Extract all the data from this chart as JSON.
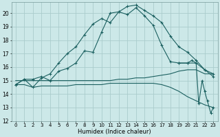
{
  "xlabel": "Humidex (Indice chaleur)",
  "bg_color": "#cce8e8",
  "grid_color": "#aacccc",
  "line_color": "#1a5f5f",
  "xlim": [
    -0.5,
    23.5
  ],
  "ylim": [
    12,
    20.8
  ],
  "yticks": [
    12,
    13,
    14,
    15,
    16,
    17,
    18,
    19,
    20
  ],
  "xticks": [
    0,
    1,
    2,
    3,
    4,
    5,
    6,
    7,
    8,
    9,
    10,
    11,
    12,
    13,
    14,
    15,
    16,
    17,
    18,
    19,
    20,
    21,
    22,
    23
  ],
  "curve1_x": [
    0,
    1,
    2,
    3,
    4,
    5,
    6,
    7,
    8,
    9,
    10,
    11,
    12,
    13,
    14,
    15,
    16,
    17,
    18,
    19,
    20,
    21,
    22,
    23
  ],
  "curve1_y": [
    14.7,
    15.1,
    14.5,
    15.2,
    15.5,
    16.3,
    17.0,
    17.5,
    18.4,
    19.2,
    19.6,
    19.3,
    20.1,
    20.5,
    20.6,
    20.2,
    19.8,
    19.3,
    18.3,
    17.5,
    17.1,
    16.5,
    15.8,
    15.3
  ],
  "curve1_markers": true,
  "curve2_x": [
    0,
    1,
    2,
    3,
    4,
    5,
    6,
    7,
    8,
    9,
    10,
    11,
    12,
    13,
    14,
    15,
    16,
    17,
    18,
    19,
    20,
    21,
    22,
    23
  ],
  "curve2_y": [
    14.7,
    15.1,
    15.1,
    15.3,
    15.0,
    15.7,
    15.9,
    16.3,
    17.2,
    17.1,
    18.6,
    20.0,
    20.1,
    19.9,
    20.4,
    19.8,
    19.1,
    17.6,
    16.4,
    16.3,
    16.3,
    16.3,
    15.8,
    15.5
  ],
  "curve2_markers": false,
  "curve3_x": [
    0,
    1,
    2,
    3,
    4,
    5,
    6,
    7,
    8,
    9,
    10,
    11,
    12,
    13,
    14,
    15,
    16,
    17,
    18,
    19,
    20,
    21,
    22,
    23
  ],
  "curve3_y": [
    15.0,
    15.0,
    15.0,
    15.0,
    15.0,
    15.0,
    15.0,
    15.0,
    15.0,
    15.0,
    15.0,
    15.0,
    15.1,
    15.1,
    15.2,
    15.2,
    15.3,
    15.4,
    15.5,
    15.7,
    15.8,
    15.8,
    15.5,
    15.5
  ],
  "curve3_markers": false,
  "curve4_x": [
    0,
    1,
    2,
    3,
    4,
    5,
    6,
    7,
    8,
    9,
    10,
    11,
    12,
    13,
    14,
    15,
    16,
    17,
    18,
    19,
    20,
    21,
    22,
    23
  ],
  "curve4_y": [
    14.7,
    14.7,
    14.5,
    14.6,
    14.6,
    14.6,
    14.6,
    14.7,
    14.7,
    14.7,
    14.7,
    14.8,
    14.8,
    14.8,
    14.8,
    14.8,
    14.8,
    14.7,
    14.5,
    14.2,
    13.8,
    13.5,
    13.2,
    13.0
  ],
  "curve4_markers": false,
  "curve5_x": [
    19,
    20,
    20.5,
    21,
    21.3,
    21.7,
    22,
    22.3,
    22.7,
    23
  ],
  "curve5_y": [
    16.3,
    16.3,
    16.5,
    16.3,
    13.3,
    15.0,
    14.2,
    13.5,
    12.6,
    13.0
  ],
  "curve5_markers": true
}
